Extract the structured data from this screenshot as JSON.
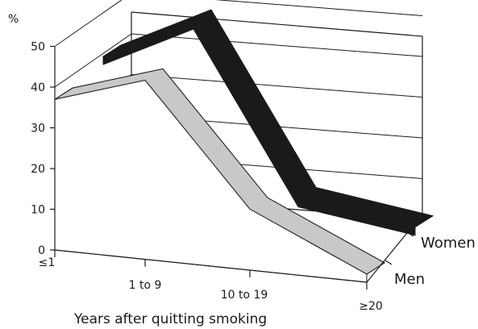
{
  "chart_data": {
    "type": "area",
    "style": "3d-ribbon",
    "ylabel": "%",
    "xlabel": "Years after quitting smoking",
    "categories": [
      "≤1",
      "1 to 9",
      "10 to 19",
      "≥20"
    ],
    "y_ticks": [
      "0",
      "10",
      "20",
      "30",
      "40",
      "50"
    ],
    "ylim": [
      0,
      50
    ],
    "grid": true,
    "series": [
      {
        "name": "Women",
        "values": [
          40,
          51,
          10,
          6
        ]
      },
      {
        "name": "Men",
        "values": [
          37,
          44,
          15,
          2
        ]
      }
    ],
    "colors": {
      "Women": "#1a1a1a",
      "Men": "#c8c8c8",
      "front_face": "#ffffff"
    }
  }
}
